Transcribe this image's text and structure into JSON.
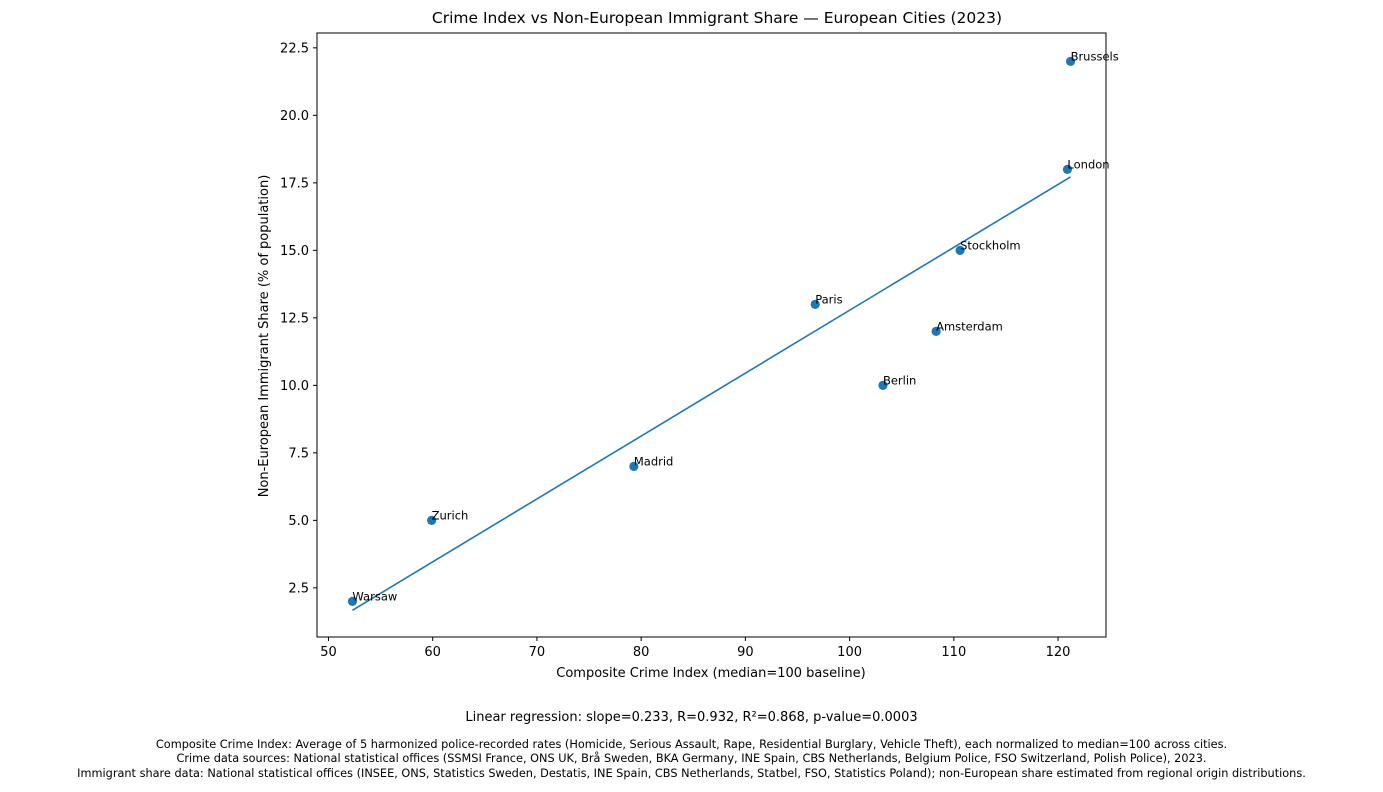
{
  "chart_data": {
    "type": "scatter",
    "title": "Crime Index vs Non-European Immigrant Share — European Cities (2023)",
    "xlabel": "Composite Crime Index (median=100 baseline)",
    "ylabel": "Non-European Immigrant Share (% of population)",
    "xlim": [
      48.9,
      124.6
    ],
    "ylim": [
      0.68,
      23.05
    ],
    "xticks": [
      50,
      60,
      70,
      80,
      90,
      100,
      110,
      120
    ],
    "yticks": [
      2.5,
      5.0,
      7.5,
      10.0,
      12.5,
      15.0,
      17.5,
      20.0,
      22.5
    ],
    "ytick_labels": [
      "2.5",
      "5.0",
      "7.5",
      "10.0",
      "12.5",
      "15.0",
      "17.5",
      "20.0",
      "22.5"
    ],
    "grid": false,
    "points": [
      {
        "label": "Warsaw",
        "x": 52.3,
        "y": 2.0
      },
      {
        "label": "Zurich",
        "x": 59.9,
        "y": 5.0
      },
      {
        "label": "Madrid",
        "x": 79.3,
        "y": 7.0
      },
      {
        "label": "Paris",
        "x": 96.7,
        "y": 13.0
      },
      {
        "label": "Berlin",
        "x": 103.2,
        "y": 10.0
      },
      {
        "label": "Amsterdam",
        "x": 108.3,
        "y": 12.0
      },
      {
        "label": "Stockholm",
        "x": 110.6,
        "y": 15.0
      },
      {
        "label": "London",
        "x": 120.9,
        "y": 18.0
      },
      {
        "label": "Brussels",
        "x": 121.2,
        "y": 22.0
      }
    ],
    "regression_line": {
      "x": [
        52.3,
        121.2
      ],
      "y": [
        1.67,
        17.72
      ]
    },
    "colors": {
      "points": "#1f77b4",
      "line": "#1f77b4"
    }
  },
  "stats_text": "Linear regression: slope=0.233, R=0.932, R²=0.868, p-value=0.0003",
  "footnotes": [
    "Composite Crime Index: Average of 5 harmonized police-recorded rates (Homicide, Serious Assault, Rape, Residential Burglary, Vehicle Theft), each normalized to median=100 across cities.",
    "Crime data sources: National statistical offices (SSMSI France, ONS UK, Brå Sweden, BKA Germany, INE Spain, CBS Netherlands, Belgium Police, FSO Switzerland, Polish Police), 2023.",
    "Immigrant share data: National statistical offices (INSEE, ONS, Statistics Sweden, Destatis, INE Spain, CBS Netherlands, Statbel, FSO, Statistics Poland); non-European share estimated from regional origin distributions."
  ]
}
